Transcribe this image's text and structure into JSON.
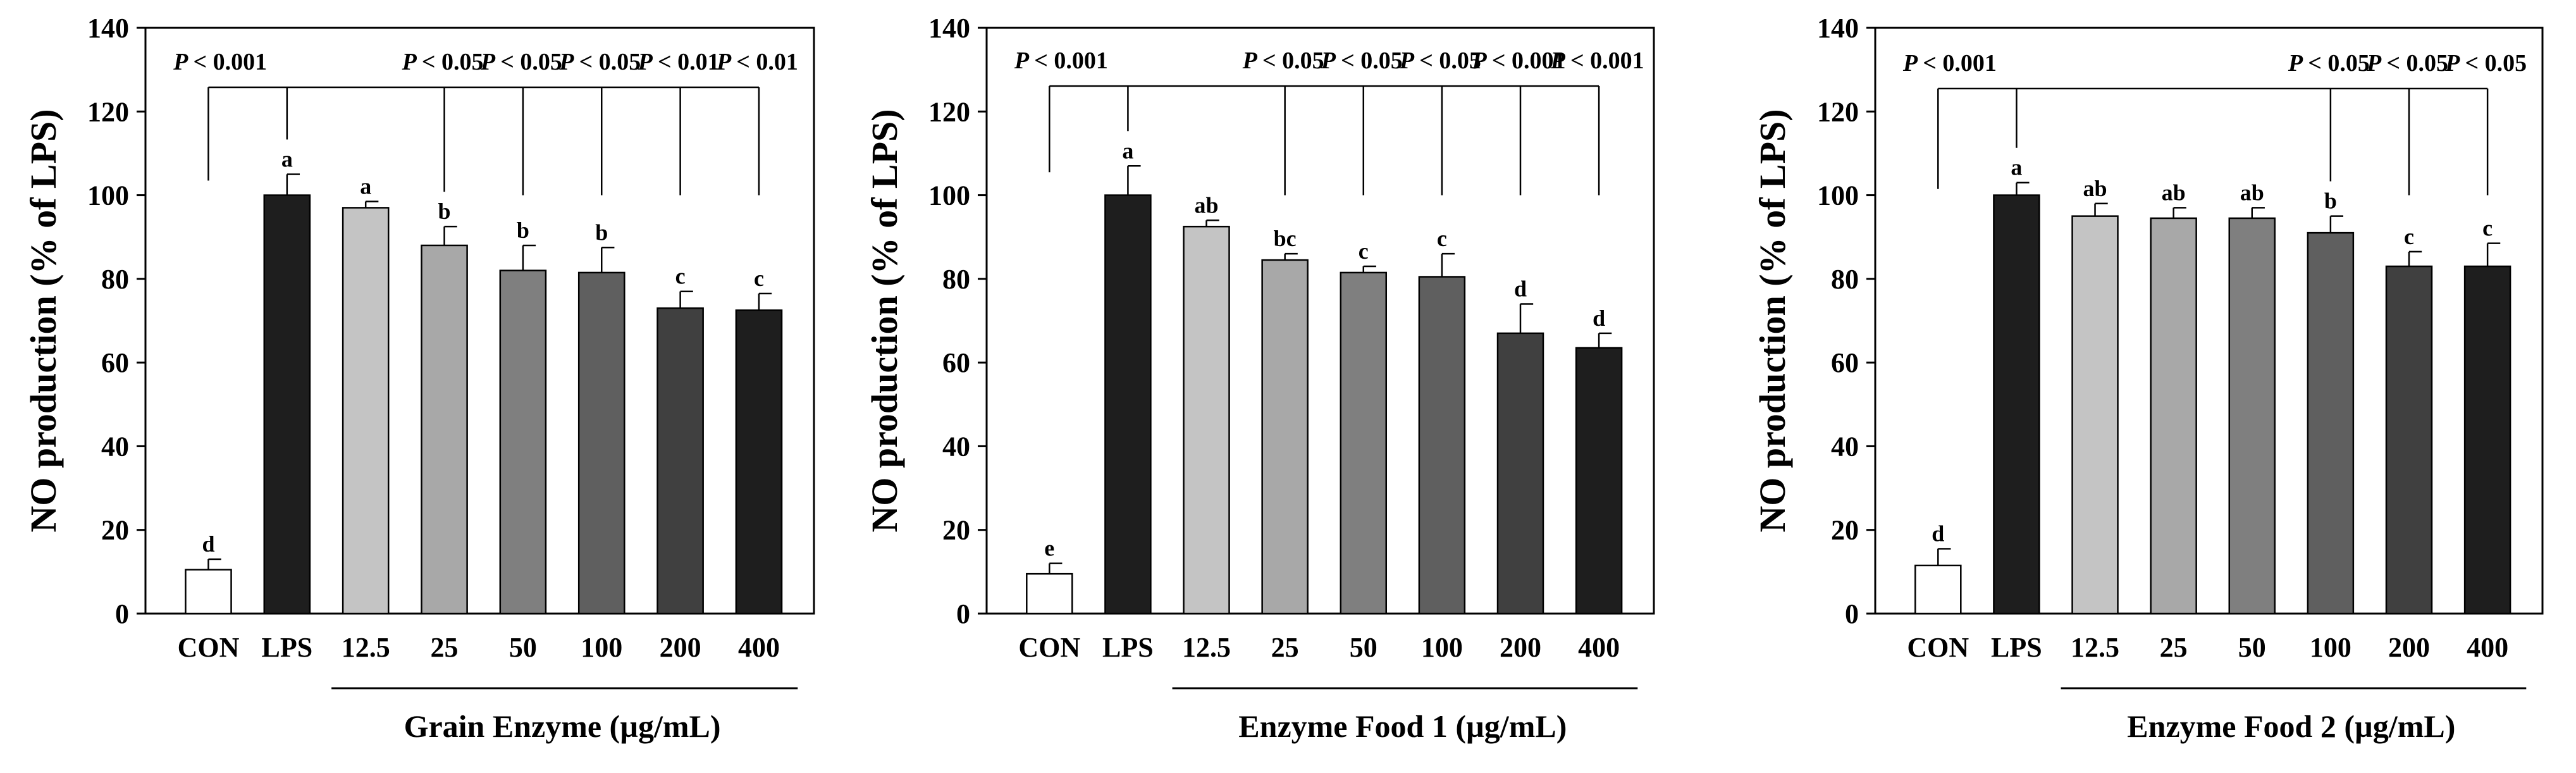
{
  "chart_data": [
    {
      "type": "bar",
      "ylabel": "NO production (% of LPS)",
      "xlabel": "Grain Enzyme (µg/mL)",
      "ylim": [
        0,
        140
      ],
      "yticks": [
        0,
        20,
        40,
        60,
        80,
        100,
        120,
        140
      ],
      "categories": [
        "CON",
        "LPS",
        "12.5",
        "25",
        "50",
        "100",
        "200",
        "400"
      ],
      "values": [
        10.5,
        100,
        97,
        88,
        82,
        81.5,
        73,
        72.5
      ],
      "errors": [
        2.5,
        5,
        1.5,
        4.5,
        6,
        6,
        4,
        4
      ],
      "bar_colors": [
        "#ffffff",
        "#1e1e1e",
        "#c4c4c4",
        "#a8a8a8",
        "#7f7f7f",
        "#5f5f5f",
        "#404040",
        "#1e1e1e"
      ],
      "significance_letters": [
        "d",
        "a",
        "a",
        "b",
        "b",
        "b",
        "c",
        "c"
      ],
      "pvalues": [
        {
          "from": 0,
          "to": 1,
          "text": "< 0.001"
        },
        {
          "from": 1,
          "to": 3,
          "text": "< 0.05"
        },
        {
          "from": 1,
          "to": 4,
          "text": "< 0.05"
        },
        {
          "from": 1,
          "to": 5,
          "text": "< 0.05"
        },
        {
          "from": 1,
          "to": 6,
          "text": "< 0.01"
        },
        {
          "from": 1,
          "to": 7,
          "text": "< 0.01"
        }
      ]
    },
    {
      "type": "bar",
      "ylabel": "NO production (% of LPS)",
      "xlabel": "Enzyme Food 1 (µg/mL)",
      "ylim": [
        0,
        140
      ],
      "yticks": [
        0,
        20,
        40,
        60,
        80,
        100,
        120,
        140
      ],
      "categories": [
        "CON",
        "LPS",
        "12.5",
        "25",
        "50",
        "100",
        "200",
        "400"
      ],
      "values": [
        9.5,
        100,
        92.5,
        84.5,
        81.5,
        80.5,
        67,
        63.5
      ],
      "errors": [
        2.5,
        7,
        1.5,
        1.5,
        1.5,
        5.5,
        7,
        3.5
      ],
      "bar_colors": [
        "#ffffff",
        "#1e1e1e",
        "#c4c4c4",
        "#a8a8a8",
        "#7f7f7f",
        "#5f5f5f",
        "#404040",
        "#1e1e1e"
      ],
      "significance_letters": [
        "e",
        "a",
        "ab",
        "bc",
        "c",
        "c",
        "d",
        "d"
      ],
      "pvalues": [
        {
          "from": 0,
          "to": 1,
          "text": "< 0.001"
        },
        {
          "from": 1,
          "to": 3,
          "text": "< 0.05"
        },
        {
          "from": 1,
          "to": 4,
          "text": "< 0.05"
        },
        {
          "from": 1,
          "to": 5,
          "text": "< 0.05"
        },
        {
          "from": 1,
          "to": 6,
          "text": "< 0.001"
        },
        {
          "from": 1,
          "to": 7,
          "text": "< 0.001"
        }
      ]
    },
    {
      "type": "bar",
      "ylabel": "NO production (% of LPS)",
      "xlabel": "Enzyme Food 2 (µg/mL)",
      "ylim": [
        0,
        140
      ],
      "yticks": [
        0,
        20,
        40,
        60,
        80,
        100,
        120,
        140
      ],
      "categories": [
        "CON",
        "LPS",
        "12.5",
        "25",
        "50",
        "100",
        "200",
        "400"
      ],
      "values": [
        11.5,
        100,
        95,
        94.5,
        94.5,
        91,
        83,
        83
      ],
      "errors": [
        4,
        3,
        3,
        2.5,
        2.5,
        4,
        3.5,
        5.5
      ],
      "bar_colors": [
        "#ffffff",
        "#1e1e1e",
        "#c4c4c4",
        "#a8a8a8",
        "#7f7f7f",
        "#5f5f5f",
        "#404040",
        "#1e1e1e"
      ],
      "significance_letters": [
        "d",
        "a",
        "ab",
        "ab",
        "ab",
        "b",
        "c",
        "c"
      ],
      "pvalues": [
        {
          "from": 0,
          "to": 1,
          "text": "< 0.001"
        },
        {
          "from": 1,
          "to": 5,
          "text": "< 0.05"
        },
        {
          "from": 1,
          "to": 6,
          "text": "< 0.05"
        },
        {
          "from": 1,
          "to": 7,
          "text": "< 0.05"
        }
      ]
    }
  ]
}
